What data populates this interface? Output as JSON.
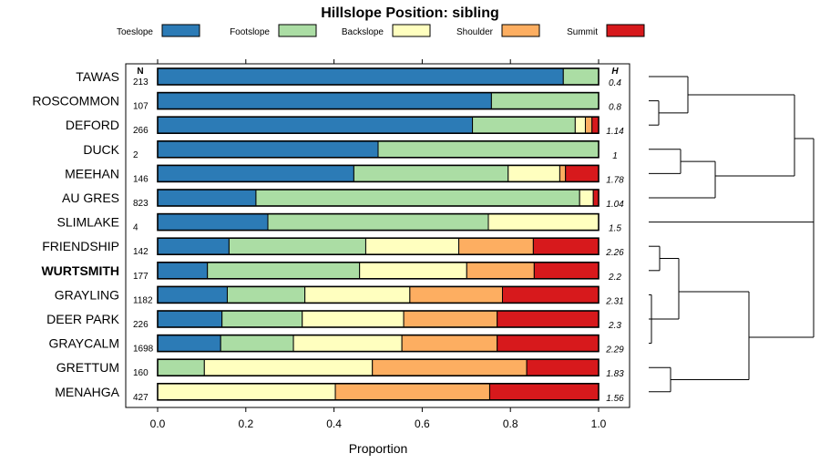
{
  "chart_data": {
    "type": "bar",
    "stacked": true,
    "orientation": "horizontal",
    "title": "Hillslope Position: sibling",
    "xlabel": "Proportion",
    "xlim": [
      0,
      1
    ],
    "x_ticks": [
      "0.0",
      "0.2",
      "0.4",
      "0.6",
      "0.8",
      "1.0"
    ],
    "n_header": "N",
    "h_header": "H",
    "legend": [
      {
        "name": "Toeslope",
        "color": "#2C7BB6"
      },
      {
        "name": "Footslope",
        "color": "#ABDDA4"
      },
      {
        "name": "Backslope",
        "color": "#FFFFBF"
      },
      {
        "name": "Shoulder",
        "color": "#FDAE61"
      },
      {
        "name": "Summit",
        "color": "#D7191C"
      }
    ],
    "rows": [
      {
        "label": "TAWAS",
        "n": "213",
        "h": "0.4",
        "bold": false,
        "values": [
          0.92,
          0.08,
          0,
          0,
          0
        ]
      },
      {
        "label": "ROSCOMMON",
        "n": "107",
        "h": "0.8",
        "bold": false,
        "values": [
          0.757,
          0.243,
          0,
          0,
          0
        ]
      },
      {
        "label": "DEFORD",
        "n": "266",
        "h": "1.14",
        "bold": false,
        "values": [
          0.714,
          0.233,
          0.023,
          0.015,
          0.015
        ]
      },
      {
        "label": "DUCK",
        "n": "2",
        "h": "1",
        "bold": false,
        "values": [
          0.5,
          0.5,
          0,
          0,
          0
        ]
      },
      {
        "label": "MEEHAN",
        "n": "146",
        "h": "1.78",
        "bold": false,
        "values": [
          0.445,
          0.35,
          0.117,
          0.013,
          0.075
        ]
      },
      {
        "label": "AU GRES",
        "n": "823",
        "h": "1.04",
        "bold": false,
        "values": [
          0.223,
          0.734,
          0.031,
          0,
          0.012
        ]
      },
      {
        "label": "SLIMLAKE",
        "n": "4",
        "h": "1.5",
        "bold": false,
        "values": [
          0.25,
          0.5,
          0.25,
          0,
          0
        ]
      },
      {
        "label": "FRIENDSHIP",
        "n": "142",
        "h": "2.26",
        "bold": false,
        "values": [
          0.162,
          0.31,
          0.211,
          0.169,
          0.148
        ]
      },
      {
        "label": "WURTSMITH",
        "n": "177",
        "h": "2.2",
        "bold": true,
        "values": [
          0.113,
          0.345,
          0.243,
          0.153,
          0.146
        ]
      },
      {
        "label": "GRAYLING",
        "n": "1182",
        "h": "2.31",
        "bold": false,
        "values": [
          0.158,
          0.176,
          0.238,
          0.21,
          0.218
        ]
      },
      {
        "label": "DEER PARK",
        "n": "226",
        "h": "2.3",
        "bold": false,
        "values": [
          0.146,
          0.182,
          0.23,
          0.212,
          0.23
        ]
      },
      {
        "label": "GRAYCALM",
        "n": "1698",
        "h": "2.29",
        "bold": false,
        "values": [
          0.143,
          0.165,
          0.246,
          0.216,
          0.23
        ]
      },
      {
        "label": "GRETTUM",
        "n": "160",
        "h": "1.83",
        "bold": false,
        "values": [
          0,
          0.106,
          0.381,
          0.35,
          0.163
        ]
      },
      {
        "label": "MENAHGA",
        "n": "427",
        "h": "1.56",
        "bold": false,
        "values": [
          0,
          0,
          0.403,
          0.35,
          0.247
        ]
      }
    ]
  }
}
